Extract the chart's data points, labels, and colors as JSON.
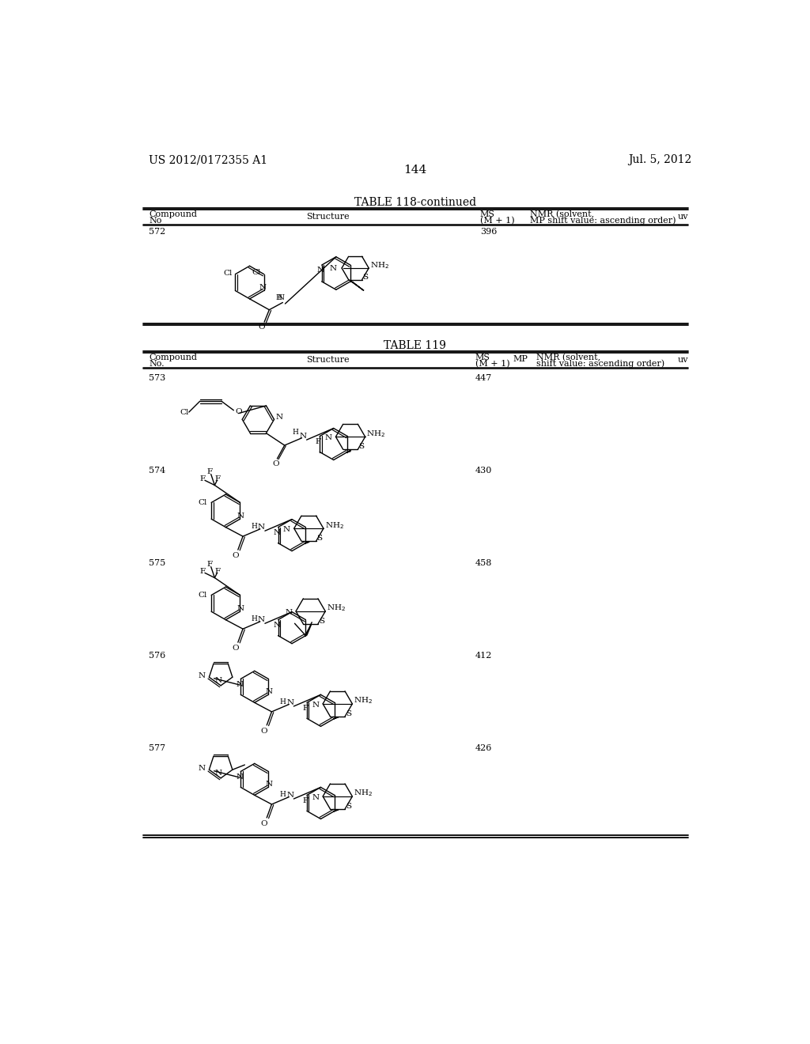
{
  "page_number": "144",
  "patent_left": "US 2012/0172355 A1",
  "patent_right": "Jul. 5, 2012",
  "table1_title": "TABLE 118-continued",
  "table2_title": "TABLE 119",
  "background_color": "#ffffff",
  "compounds_t118": [
    {
      "no": "572",
      "ms": "396"
    }
  ],
  "compounds_t119": [
    {
      "no": "573",
      "ms": "447"
    },
    {
      "no": "574",
      "ms": "430"
    },
    {
      "no": "575",
      "ms": "458"
    },
    {
      "no": "576",
      "ms": "412"
    },
    {
      "no": "577",
      "ms": "426"
    }
  ]
}
